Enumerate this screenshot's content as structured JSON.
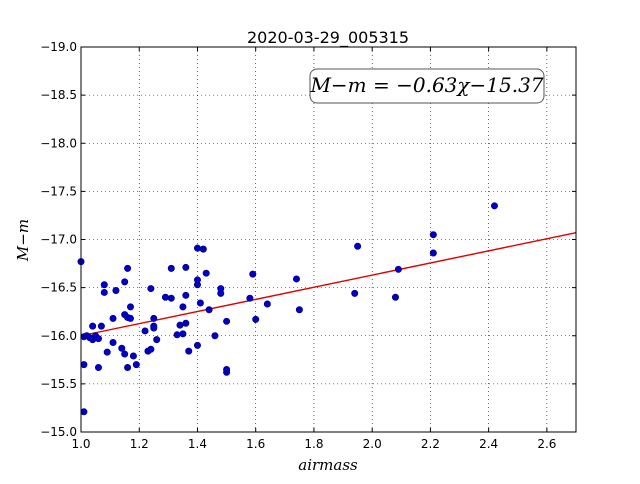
{
  "chart_data": {
    "type": "scatter",
    "title": "2020-03-29_005315",
    "xlabel": "airmass",
    "ylabel": "M−m",
    "xlim": [
      1.0,
      2.7
    ],
    "ylim": [
      -19.0,
      -15.0
    ],
    "y_inverted": true,
    "grid": true,
    "x_ticks": [
      "1.0",
      "1.2",
      "1.4",
      "1.6",
      "1.8",
      "2.0",
      "2.2",
      "2.4",
      "2.6"
    ],
    "y_ticks": [
      "−15.0",
      "−15.5",
      "−16.0",
      "−16.5",
      "−17.0",
      "−17.5",
      "−18.0",
      "−18.5",
      "−19.0"
    ],
    "x_tick_values": [
      1.0,
      1.2,
      1.4,
      1.6,
      1.8,
      2.0,
      2.2,
      2.4,
      2.6
    ],
    "y_tick_values": [
      -15.0,
      -15.5,
      -16.0,
      -16.5,
      -17.0,
      -17.5,
      -18.0,
      -18.5,
      -19.0
    ],
    "annotation": "M−m = −0.63χ−15.37",
    "fit": {
      "slope": -0.63,
      "intercept": -15.37,
      "color": "#e00000"
    },
    "marker_color": "#0000c8",
    "points": [
      [
        1.0,
        -16.77
      ],
      [
        1.01,
        -15.21
      ],
      [
        1.01,
        -15.99
      ],
      [
        1.01,
        -15.7
      ],
      [
        1.02,
        -16.0
      ],
      [
        1.03,
        -15.98
      ],
      [
        1.04,
        -15.96
      ],
      [
        1.04,
        -16.1
      ],
      [
        1.05,
        -16.0
      ],
      [
        1.06,
        -15.97
      ],
      [
        1.06,
        -15.67
      ],
      [
        1.07,
        -16.1
      ],
      [
        1.08,
        -16.45
      ],
      [
        1.08,
        -16.53
      ],
      [
        1.09,
        -15.83
      ],
      [
        1.11,
        -15.93
      ],
      [
        1.11,
        -16.18
      ],
      [
        1.12,
        -16.47
      ],
      [
        1.14,
        -15.87
      ],
      [
        1.15,
        -15.81
      ],
      [
        1.15,
        -16.56
      ],
      [
        1.15,
        -16.22
      ],
      [
        1.16,
        -16.19
      ],
      [
        1.16,
        -16.7
      ],
      [
        1.16,
        -15.67
      ],
      [
        1.17,
        -16.3
      ],
      [
        1.17,
        -16.18
      ],
      [
        1.18,
        -15.79
      ],
      [
        1.19,
        -15.7
      ],
      [
        1.22,
        -16.05
      ],
      [
        1.23,
        -15.84
      ],
      [
        1.24,
        -16.49
      ],
      [
        1.24,
        -15.86
      ],
      [
        1.25,
        -16.18
      ],
      [
        1.25,
        -16.1
      ],
      [
        1.25,
        -16.08
      ],
      [
        1.26,
        -15.96
      ],
      [
        1.29,
        -16.4
      ],
      [
        1.31,
        -16.7
      ],
      [
        1.31,
        -16.39
      ],
      [
        1.33,
        -16.01
      ],
      [
        1.34,
        -16.11
      ],
      [
        1.35,
        -16.02
      ],
      [
        1.35,
        -16.3
      ],
      [
        1.36,
        -16.13
      ],
      [
        1.36,
        -16.42
      ],
      [
        1.36,
        -16.71
      ],
      [
        1.37,
        -15.84
      ],
      [
        1.4,
        -16.91
      ],
      [
        1.4,
        -16.53
      ],
      [
        1.4,
        -16.58
      ],
      [
        1.4,
        -15.9
      ],
      [
        1.41,
        -16.34
      ],
      [
        1.42,
        -16.9
      ],
      [
        1.43,
        -16.65
      ],
      [
        1.44,
        -16.27
      ],
      [
        1.46,
        -16.0
      ],
      [
        1.48,
        -16.44
      ],
      [
        1.48,
        -16.49
      ],
      [
        1.5,
        -15.62
      ],
      [
        1.5,
        -15.65
      ],
      [
        1.5,
        -16.15
      ],
      [
        1.58,
        -16.39
      ],
      [
        1.59,
        -16.64
      ],
      [
        1.6,
        -16.17
      ],
      [
        1.64,
        -16.33
      ],
      [
        1.74,
        -16.59
      ],
      [
        1.75,
        -16.27
      ],
      [
        1.94,
        -16.44
      ],
      [
        1.95,
        -16.93
      ],
      [
        2.08,
        -16.4
      ],
      [
        2.09,
        -16.69
      ],
      [
        2.21,
        -16.86
      ],
      [
        2.21,
        -17.05
      ],
      [
        2.42,
        -17.35
      ]
    ]
  }
}
